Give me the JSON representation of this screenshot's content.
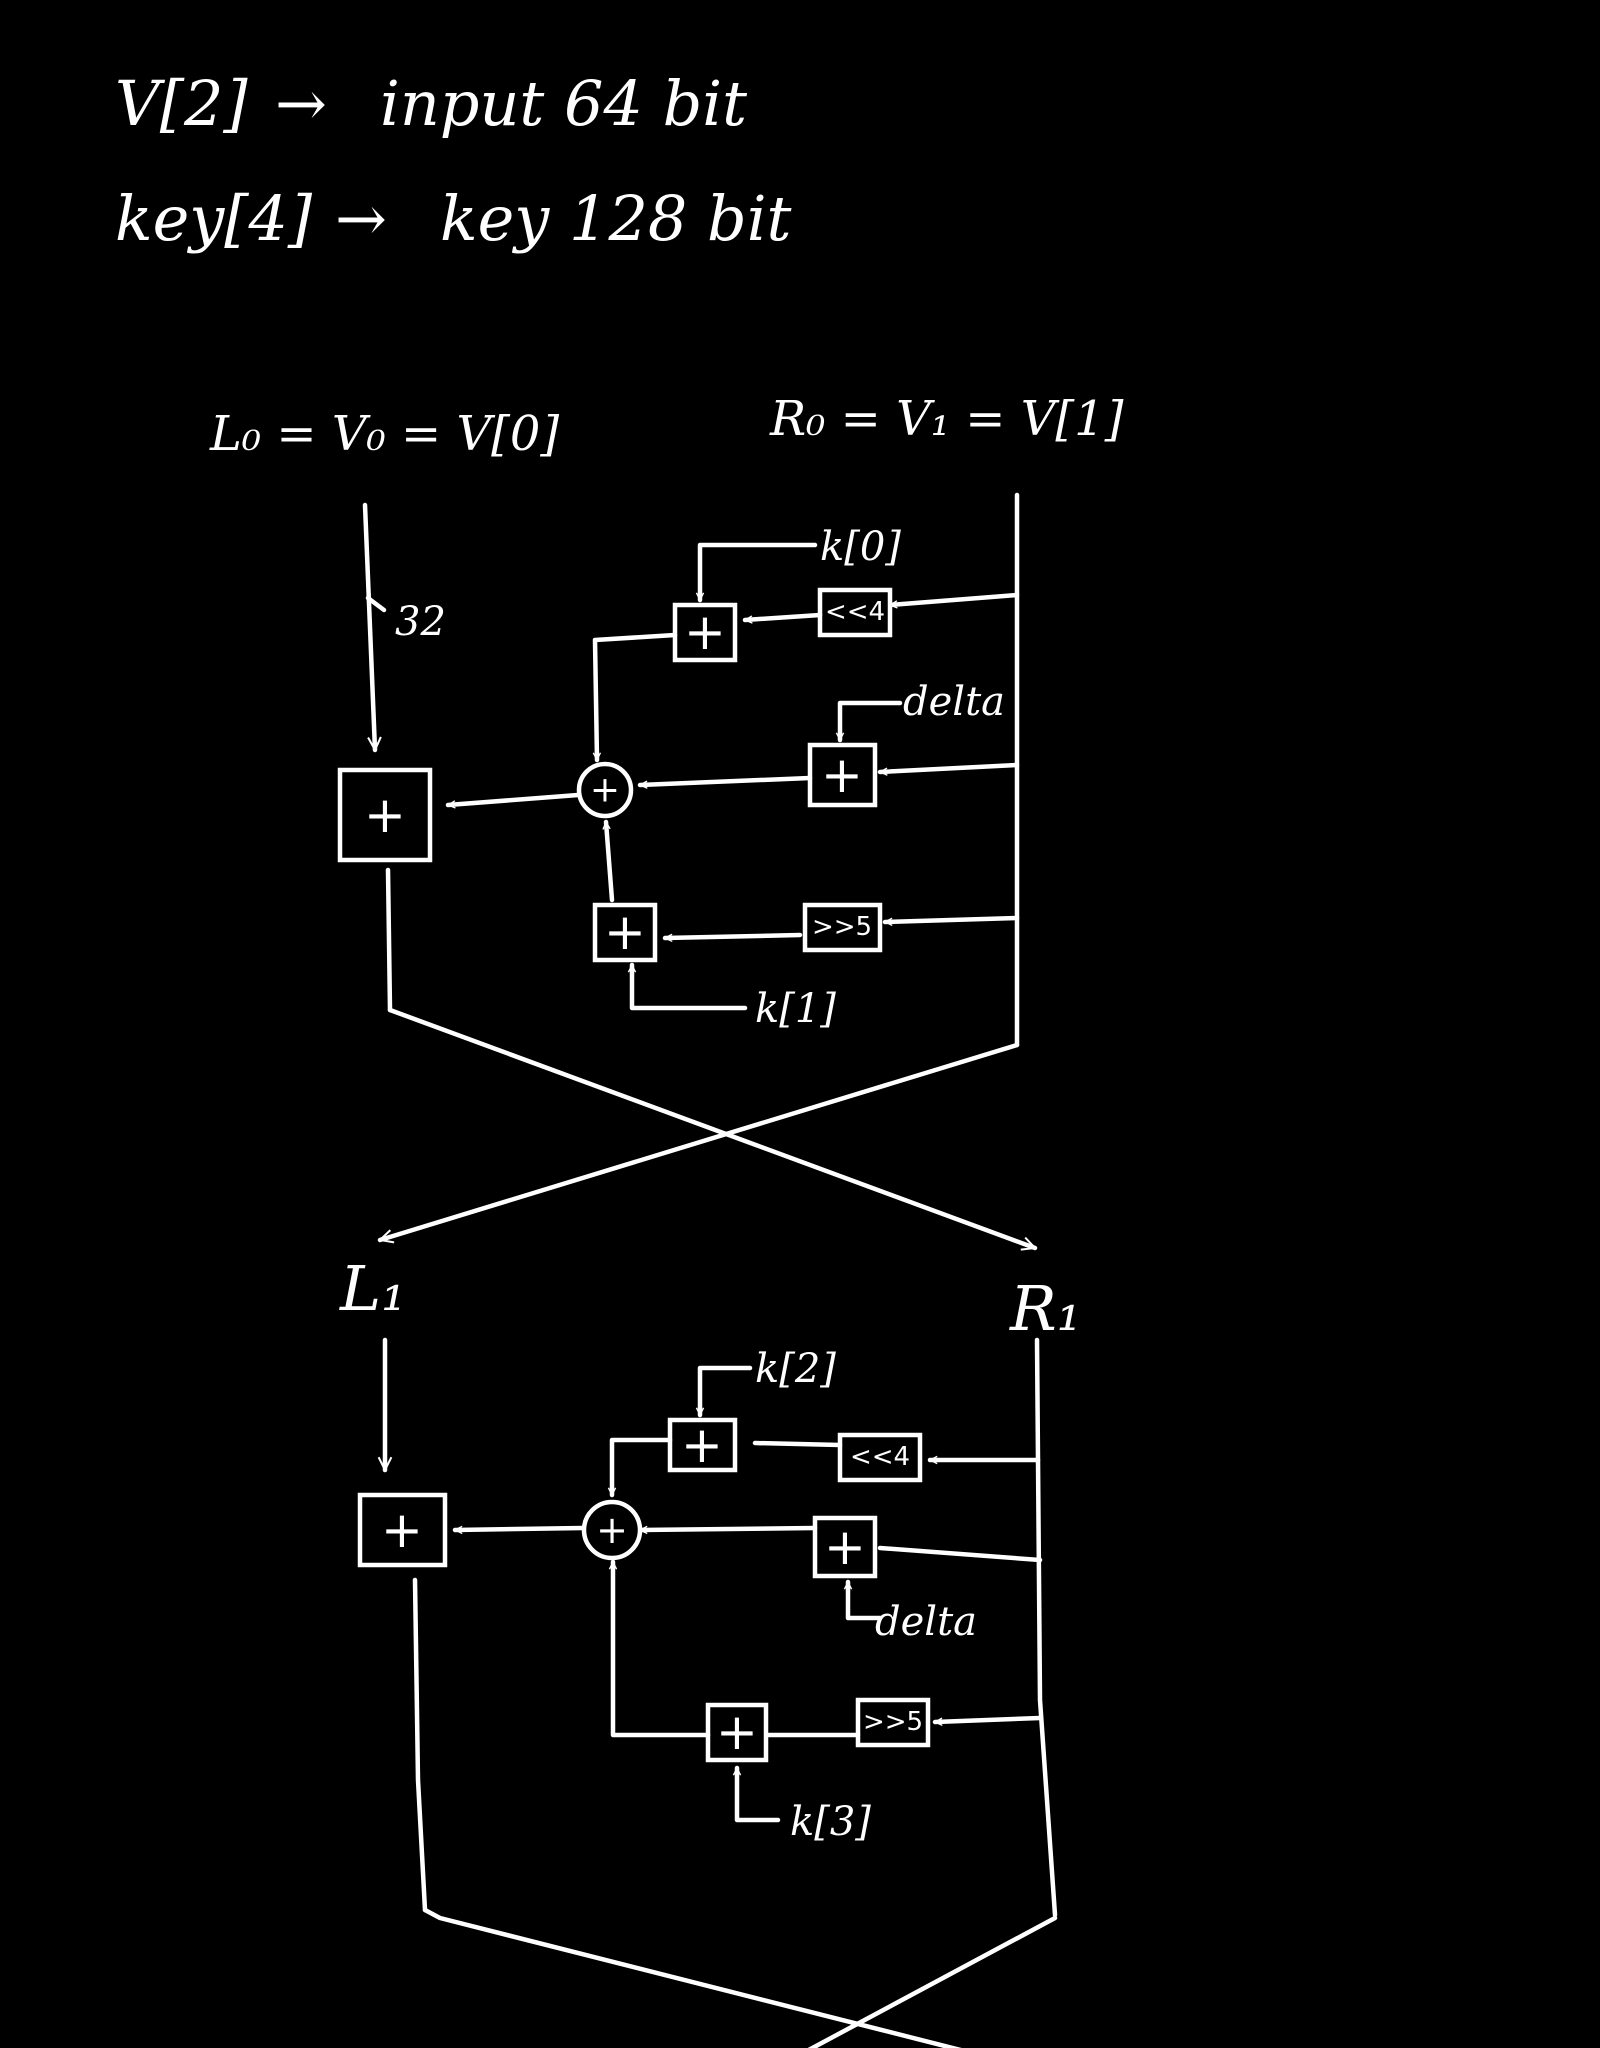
{
  "header": {
    "line1_var": "V[2]",
    "line1_desc": "input 64 bit",
    "line2_var": "key[4]",
    "line2_desc": "key 128 bit",
    "arrow": "→"
  },
  "round1": {
    "left_label": "L₀ = V₀ = V[0]",
    "right_label": "R₀ = V₁ = V[1]",
    "width_label": "32",
    "key_a": "k[0]",
    "key_b": "k[1]",
    "delta": "delta",
    "shl": "<<4",
    "shr": ">>5"
  },
  "round2": {
    "left_label": "L₁",
    "right_label": "R₁",
    "key_a": "k[2]",
    "key_b": "k[3]",
    "delta": "delta",
    "shl": "<<4",
    "shr": ">>5"
  },
  "symbols": {
    "add": "+",
    "xor": "+"
  }
}
